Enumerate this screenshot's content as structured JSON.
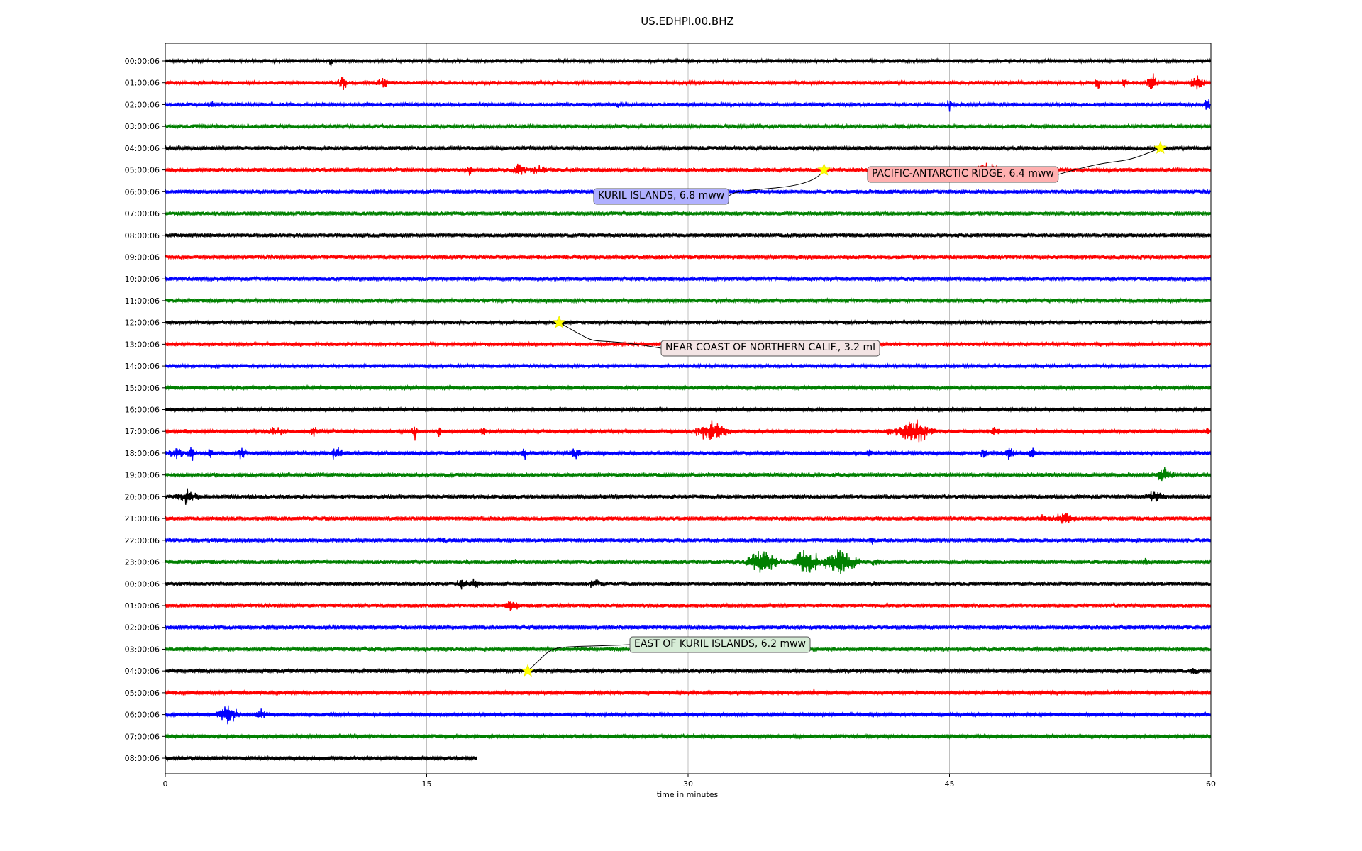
{
  "chart_data": {
    "type": "line",
    "title": "US.EDHPI.00.BHZ",
    "xlabel": "time in minutes",
    "ylabel": "",
    "xlim": [
      0,
      60
    ],
    "xticks": [
      0,
      15,
      30,
      45,
      60
    ],
    "xtick_labels": [
      "0",
      "15",
      "30",
      "45",
      "60"
    ],
    "grid": "vertical lines at x ticks",
    "trace_colors": [
      "#000000",
      "#ff0000",
      "#0000ff",
      "#008000"
    ],
    "rows": [
      {
        "label": "00:00:06",
        "color": "#000000",
        "end_min": 60,
        "bursts": [
          {
            "t": 9.5,
            "a": 10,
            "d": 0.15
          }
        ]
      },
      {
        "label": "01:00:06",
        "color": "#ff0000",
        "end_min": 60,
        "bursts": [
          {
            "t": 10.2,
            "a": 12,
            "d": 0.5
          },
          {
            "t": 12.5,
            "a": 9,
            "d": 0.8
          },
          {
            "t": 53.5,
            "a": 14,
            "d": 0.3
          },
          {
            "t": 55.0,
            "a": 10,
            "d": 0.3
          },
          {
            "t": 56.6,
            "a": 20,
            "d": 0.4
          },
          {
            "t": 59.2,
            "a": 18,
            "d": 0.6
          }
        ]
      },
      {
        "label": "02:00:06",
        "color": "#0000ff",
        "end_min": 60,
        "bursts": [
          {
            "t": 2.8,
            "a": 5,
            "d": 1.5
          },
          {
            "t": 26.1,
            "a": 7,
            "d": 0.4
          },
          {
            "t": 37.8,
            "a": 6,
            "d": 0.3
          },
          {
            "t": 45.0,
            "a": 14,
            "d": 0.2
          },
          {
            "t": 47.0,
            "a": 5,
            "d": 1.5
          },
          {
            "t": 59.8,
            "a": 14,
            "d": 0.3
          }
        ]
      },
      {
        "label": "03:00:06",
        "color": "#008000",
        "end_min": 60,
        "bursts": []
      },
      {
        "label": "04:00:06",
        "color": "#000000",
        "end_min": 60,
        "bursts": []
      },
      {
        "label": "05:00:06",
        "color": "#ff0000",
        "end_min": 60,
        "bursts": [
          {
            "t": 17.4,
            "a": 11,
            "d": 0.4
          },
          {
            "t": 20.3,
            "a": 14,
            "d": 0.6
          },
          {
            "t": 21.5,
            "a": 9,
            "d": 1.0
          },
          {
            "t": 47.4,
            "a": 16,
            "d": 1.5
          }
        ]
      },
      {
        "label": "06:00:06",
        "color": "#0000ff",
        "end_min": 60,
        "bursts": []
      },
      {
        "label": "07:00:06",
        "color": "#008000",
        "end_min": 60,
        "bursts": []
      },
      {
        "label": "08:00:06",
        "color": "#000000",
        "end_min": 60,
        "bursts": []
      },
      {
        "label": "09:00:06",
        "color": "#ff0000",
        "end_min": 60,
        "bursts": []
      },
      {
        "label": "10:00:06",
        "color": "#0000ff",
        "end_min": 60,
        "bursts": []
      },
      {
        "label": "11:00:06",
        "color": "#008000",
        "end_min": 60,
        "bursts": [
          {
            "t": 31.8,
            "a": 5,
            "d": 0.4
          }
        ]
      },
      {
        "label": "12:00:06",
        "color": "#000000",
        "end_min": 60,
        "bursts": [
          {
            "t": 3.3,
            "a": 5,
            "d": 0.2
          }
        ]
      },
      {
        "label": "13:00:06",
        "color": "#ff0000",
        "end_min": 60,
        "bursts": []
      },
      {
        "label": "14:00:06",
        "color": "#0000ff",
        "end_min": 60,
        "bursts": [
          {
            "t": 15.3,
            "a": 7,
            "d": 0.2
          }
        ]
      },
      {
        "label": "15:00:06",
        "color": "#008000",
        "end_min": 60,
        "bursts": []
      },
      {
        "label": "16:00:06",
        "color": "#000000",
        "end_min": 60,
        "bursts": []
      },
      {
        "label": "17:00:06",
        "color": "#ff0000",
        "end_min": 60,
        "bursts": [
          {
            "t": 1.2,
            "a": 8,
            "d": 0.2
          },
          {
            "t": 6.3,
            "a": 9,
            "d": 1.2
          },
          {
            "t": 8.6,
            "a": 9,
            "d": 0.8
          },
          {
            "t": 14.3,
            "a": 16,
            "d": 0.3
          },
          {
            "t": 15.7,
            "a": 9,
            "d": 0.3
          },
          {
            "t": 18.3,
            "a": 11,
            "d": 0.3
          },
          {
            "t": 31.4,
            "a": 18,
            "d": 1.5
          },
          {
            "t": 41.6,
            "a": 9,
            "d": 0.5
          },
          {
            "t": 43.0,
            "a": 22,
            "d": 1.5
          },
          {
            "t": 47.6,
            "a": 7,
            "d": 0.8
          },
          {
            "t": 50.0,
            "a": 6,
            "d": 0.3
          },
          {
            "t": 59.8,
            "a": 7,
            "d": 0.3
          }
        ]
      },
      {
        "label": "18:00:06",
        "color": "#0000ff",
        "end_min": 60,
        "bursts": [
          {
            "t": 0.6,
            "a": 10,
            "d": 1.0
          },
          {
            "t": 1.5,
            "a": 14,
            "d": 0.4
          },
          {
            "t": 2.6,
            "a": 18,
            "d": 0.2
          },
          {
            "t": 4.4,
            "a": 18,
            "d": 0.3
          },
          {
            "t": 9.8,
            "a": 12,
            "d": 0.7
          },
          {
            "t": 16.8,
            "a": 7,
            "d": 0.3
          },
          {
            "t": 20.6,
            "a": 11,
            "d": 0.3
          },
          {
            "t": 23.5,
            "a": 12,
            "d": 0.5
          },
          {
            "t": 40.4,
            "a": 8,
            "d": 0.4
          },
          {
            "t": 47.0,
            "a": 14,
            "d": 0.4
          },
          {
            "t": 48.4,
            "a": 12,
            "d": 0.5
          },
          {
            "t": 49.7,
            "a": 10,
            "d": 0.7
          }
        ]
      },
      {
        "label": "19:00:06",
        "color": "#008000",
        "end_min": 60,
        "bursts": [
          {
            "t": 57.3,
            "a": 13,
            "d": 0.9
          }
        ]
      },
      {
        "label": "20:00:06",
        "color": "#000000",
        "end_min": 60,
        "bursts": [
          {
            "t": 1.3,
            "a": 14,
            "d": 1.0
          },
          {
            "t": 5.2,
            "a": 5,
            "d": 0.2
          },
          {
            "t": 56.8,
            "a": 10,
            "d": 1.1
          }
        ]
      },
      {
        "label": "21:00:06",
        "color": "#ff0000",
        "end_min": 60,
        "bursts": [
          {
            "t": 50.4,
            "a": 8,
            "d": 0.5
          },
          {
            "t": 51.5,
            "a": 11,
            "d": 1.5
          }
        ]
      },
      {
        "label": "22:00:06",
        "color": "#0000ff",
        "end_min": 60,
        "bursts": [
          {
            "t": 5.4,
            "a": 5,
            "d": 0.2
          },
          {
            "t": 15.9,
            "a": 9,
            "d": 0.6
          },
          {
            "t": 40.6,
            "a": 7,
            "d": 0.3
          }
        ]
      },
      {
        "label": "23:00:06",
        "color": "#008000",
        "end_min": 60,
        "bursts": [
          {
            "t": 17.3,
            "a": 7,
            "d": 0.3
          },
          {
            "t": 20.0,
            "a": 6,
            "d": 0.4
          },
          {
            "t": 24.8,
            "a": 7,
            "d": 0.3
          },
          {
            "t": 34.3,
            "a": 24,
            "d": 1.4
          },
          {
            "t": 36.8,
            "a": 26,
            "d": 1.2
          },
          {
            "t": 38.6,
            "a": 22,
            "d": 1.8
          },
          {
            "t": 40.8,
            "a": 9,
            "d": 0.5
          },
          {
            "t": 56.3,
            "a": 9,
            "d": 0.4
          }
        ]
      },
      {
        "label": "00:00:06",
        "color": "#000000",
        "end_min": 60,
        "bursts": [
          {
            "t": 17.0,
            "a": 10,
            "d": 0.9
          },
          {
            "t": 17.8,
            "a": 12,
            "d": 0.6
          },
          {
            "t": 24.6,
            "a": 9,
            "d": 0.9
          },
          {
            "t": 25.4,
            "a": 8,
            "d": 0.4
          },
          {
            "t": 29.0,
            "a": 5,
            "d": 1.2
          },
          {
            "t": 40.7,
            "a": 6,
            "d": 0.3
          }
        ]
      },
      {
        "label": "01:00:06",
        "color": "#ff0000",
        "end_min": 60,
        "bursts": [
          {
            "t": 19.8,
            "a": 12,
            "d": 0.7
          }
        ]
      },
      {
        "label": "02:00:06",
        "color": "#0000ff",
        "end_min": 60,
        "bursts": []
      },
      {
        "label": "03:00:06",
        "color": "#008000",
        "end_min": 60,
        "bursts": []
      },
      {
        "label": "04:00:06",
        "color": "#000000",
        "end_min": 60,
        "bursts": [
          {
            "t": 59.0,
            "a": 9,
            "d": 0.5
          }
        ]
      },
      {
        "label": "05:00:06",
        "color": "#ff0000",
        "end_min": 60,
        "bursts": [
          {
            "t": 37.2,
            "a": 8,
            "d": 0.3
          },
          {
            "t": 40.0,
            "a": 6,
            "d": 0.3
          }
        ]
      },
      {
        "label": "06:00:06",
        "color": "#0000ff",
        "end_min": 60,
        "bursts": [
          {
            "t": 3.6,
            "a": 18,
            "d": 0.9
          },
          {
            "t": 5.5,
            "a": 9,
            "d": 0.7
          }
        ]
      },
      {
        "label": "07:00:06",
        "color": "#008000",
        "end_min": 60,
        "bursts": []
      },
      {
        "label": "08:00:06",
        "color": "#000000",
        "end_min": 17.9,
        "bursts": []
      }
    ],
    "events": [
      {
        "row": 5,
        "minute": 37.8,
        "text": "KURIL ISLANDS, 6.8 mww",
        "box_color": "#b0b0ff"
      },
      {
        "row": 4,
        "minute": 57.1,
        "text": "PACIFIC-ANTARCTIC RIDGE, 6.4 mww",
        "box_color": "#ffb0b0"
      },
      {
        "row": 12,
        "minute": 22.6,
        "text": "NEAR COAST OF NORTHERN CALIF., 3.2 ml",
        "box_color": "#f3e4e4"
      },
      {
        "row": 28,
        "minute": 20.8,
        "text": "EAST OF KURIL ISLANDS, 6.2 mww",
        "box_color": "#d6ecd6"
      }
    ]
  }
}
